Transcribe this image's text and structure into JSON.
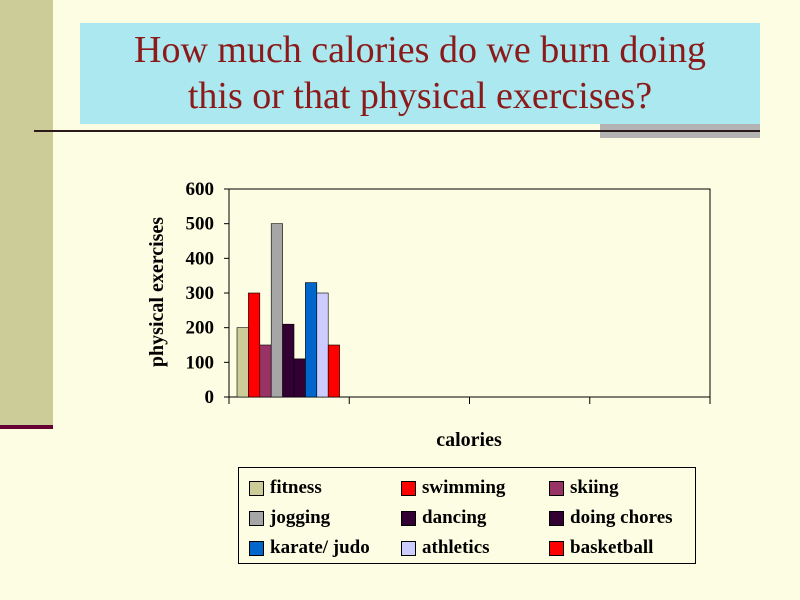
{
  "slide": {
    "title_line1": "How much calories do we burn doing",
    "title_line2": "this or that physical exercises?"
  },
  "colors": {
    "background": "#fdfde3",
    "title_box": "#ace8f0",
    "title_text": "#8b1a1a",
    "side_bar": "#cccc99"
  },
  "chart_data": {
    "type": "bar",
    "xlabel": "calories",
    "ylabel": "physical exercises",
    "ylim": [
      0,
      600
    ],
    "yticks": [
      0,
      100,
      200,
      300,
      400,
      500,
      600
    ],
    "grid": false,
    "legend_position": "bottom",
    "series": [
      {
        "name": "fitness",
        "value": 200,
        "color": "#cccc99"
      },
      {
        "name": "swimming",
        "value": 300,
        "color": "#ff0000"
      },
      {
        "name": "skiing",
        "value": 150,
        "color": "#993366"
      },
      {
        "name": "jogging",
        "value": 500,
        "color": "#a6a6a6"
      },
      {
        "name": "dancing",
        "value": 210,
        "color": "#330033"
      },
      {
        "name": "doing chores",
        "value": 110,
        "color": "#330033"
      },
      {
        "name": "karate/ judo",
        "value": 330,
        "color": "#0066cc"
      },
      {
        "name": "athletics",
        "value": 300,
        "color": "#ccccff"
      },
      {
        "name": "basketball",
        "value": 150,
        "color": "#ff0000"
      }
    ]
  }
}
